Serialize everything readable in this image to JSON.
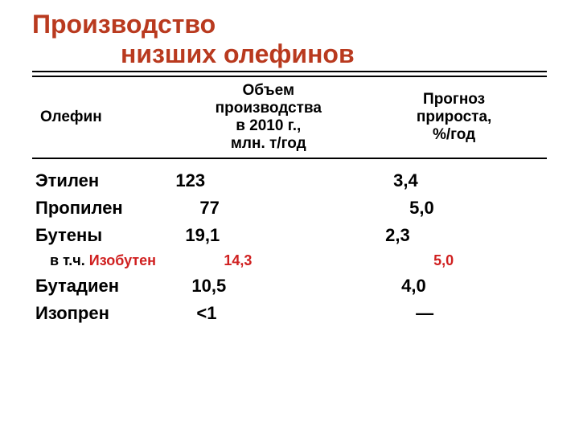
{
  "title": {
    "line1": "Производство",
    "line2": "низших олефинов",
    "color": "#b93a1f"
  },
  "table": {
    "header_font_size": 19,
    "body_font_size": 22,
    "sub_font_size": 18,
    "border_color": "#000000",
    "columns": {
      "c1": "Олефин",
      "c2_l1": "Объем",
      "c2_l2": "производства",
      "c2_l3": "в 2010 г.,",
      "c2_l4": "млн. т/год",
      "c3_l1": "Прогноз",
      "c3_l2": "прироста,",
      "c3_l3": "%/год"
    },
    "rows": [
      {
        "name": "Этилен",
        "vol": "123",
        "growth": "3,4",
        "sub": false,
        "vol_pad": 0,
        "grow_pad": 40
      },
      {
        "name": "Пропилен",
        "vol": "77",
        "growth": "5,0",
        "sub": false,
        "vol_pad": 30,
        "grow_pad": 60
      },
      {
        "name": "Бутены",
        "vol": "19,1",
        "growth": "2,3",
        "sub": false,
        "vol_pad": 12,
        "grow_pad": 30
      },
      {
        "name_prefix": "в т.ч. ",
        "name_colored": "Изобутен",
        "vol": "14,3",
        "growth": "5,0",
        "sub": true,
        "vol_pad": 60,
        "grow_pad": 90,
        "accent": "#d02020"
      },
      {
        "name": "Бутадиен",
        "vol": "10,5",
        "growth": "4,0",
        "sub": false,
        "vol_pad": 20,
        "grow_pad": 50
      },
      {
        "name": "Изопрен",
        "vol": "<1",
        "growth": "—",
        "sub": false,
        "vol_pad": 26,
        "grow_pad": 68
      }
    ]
  },
  "bullet_color": "#c05028"
}
